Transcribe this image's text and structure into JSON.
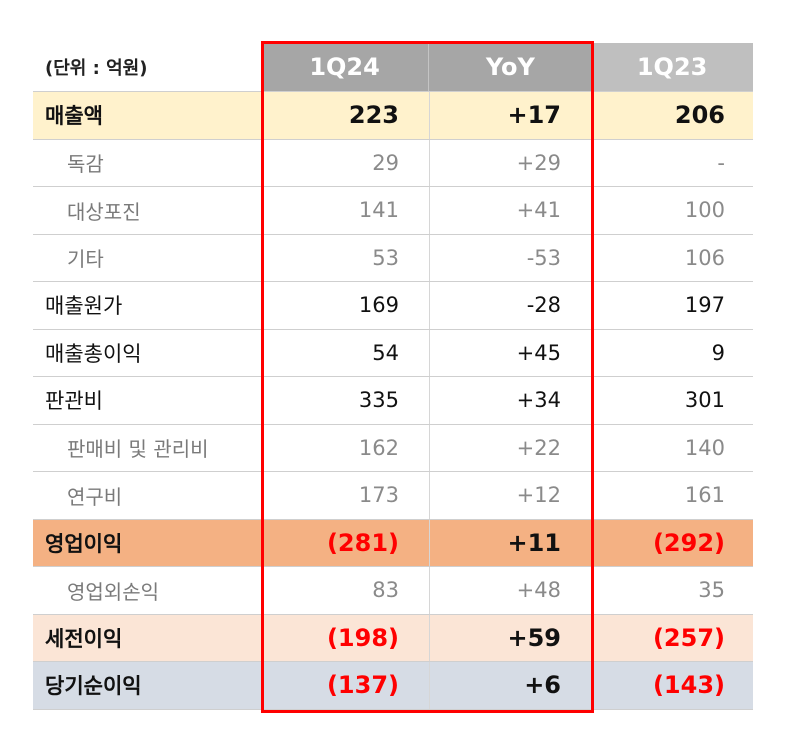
{
  "header": {
    "unit": "(단위 : 억원)",
    "col1": "1Q24",
    "col2": "YoY",
    "col3": "1Q23"
  },
  "rows": [
    {
      "label": "매출액",
      "q24": "223",
      "yoy": "+17",
      "q23": "206"
    },
    {
      "label": "독감",
      "q24": "29",
      "yoy": "+29",
      "q23": "-"
    },
    {
      "label": "대상포진",
      "q24": "141",
      "yoy": "+41",
      "q23": "100"
    },
    {
      "label": "기타",
      "q24": "53",
      "yoy": "-53",
      "q23": "106"
    },
    {
      "label": "매출원가",
      "q24": "169",
      "yoy": "-28",
      "q23": "197"
    },
    {
      "label": "매출총이익",
      "q24": "54",
      "yoy": "+45",
      "q23": "9"
    },
    {
      "label": "판관비",
      "q24": "335",
      "yoy": "+34",
      "q23": "301"
    },
    {
      "label": "판매비 및 관리비",
      "q24": "162",
      "yoy": "+22",
      "q23": "140"
    },
    {
      "label": "연구비",
      "q24": "173",
      "yoy": "+12",
      "q23": "161"
    },
    {
      "label": "영업이익",
      "q24": "(281)",
      "yoy": "+11",
      "q23": "(292)"
    },
    {
      "label": "영업외손익",
      "q24": "83",
      "yoy": "+48",
      "q23": "35"
    },
    {
      "label": "세전이익",
      "q24": "(198)",
      "yoy": "+59",
      "q23": "(257)"
    },
    {
      "label": "당기순이익",
      "q24": "(137)",
      "yoy": "+6",
      "q23": "(143)"
    }
  ],
  "colors": {
    "highlight_border": "#ff0000",
    "negative": "#ff0000",
    "sales_bg": "#fff2cc",
    "op_income_bg": "#f4b183",
    "pretax_bg": "#fbe5d6",
    "net_income_bg": "#d6dce5",
    "header_bg": "#a6a6a6"
  }
}
